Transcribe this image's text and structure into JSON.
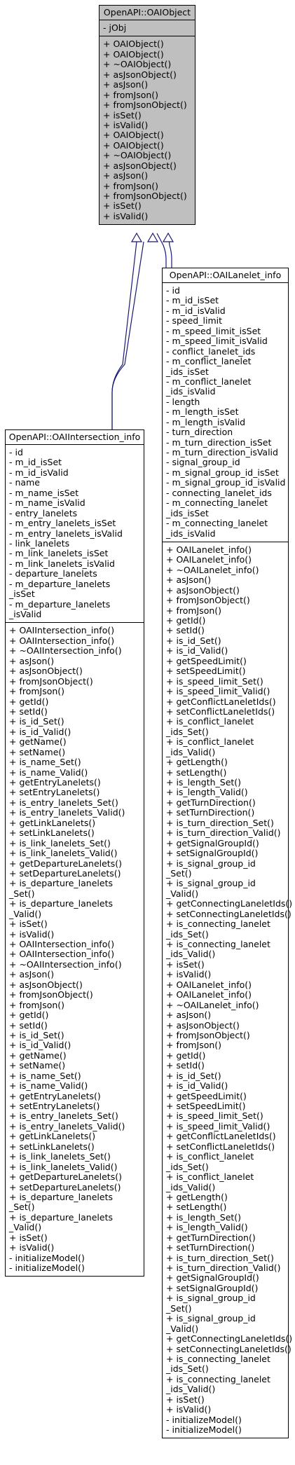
{
  "diagram": {
    "base_class": {
      "title": "OpenAPI::OAIObject",
      "attributes": [
        "- jObj"
      ],
      "methods": [
        "+ OAIObject()",
        "+ OAIObject()",
        "+ ~OAIObject()",
        "+ asJsonObject()",
        "+ asJson()",
        "+ fromJson()",
        "+ fromJsonObject()",
        "+ isSet()",
        "+ isValid()",
        "+ OAIObject()",
        "+ OAIObject()",
        "+ ~OAIObject()",
        "+ asJsonObject()",
        "+ asJson()",
        "+ fromJson()",
        "+ fromJsonObject()",
        "+ isSet()",
        "+ isValid()"
      ]
    },
    "intersection_class": {
      "title": "OpenAPI::OAIIntersection_info",
      "attributes": [
        "- id",
        "- m_id_isSet",
        "- m_id_isValid",
        "- name",
        "- m_name_isSet",
        "- m_name_isValid",
        "- entry_lanelets",
        "- m_entry_lanelets_isSet",
        "- m_entry_lanelets_isValid",
        "- link_lanelets",
        "- m_link_lanelets_isSet",
        "- m_link_lanelets_isValid",
        "- departure_lanelets",
        "- m_departure_lanelets",
        "  _isSet",
        "- m_departure_lanelets",
        "  _isValid"
      ],
      "methods": [
        "+ OAIIntersection_info()",
        "+ OAIIntersection_info()",
        "+ ~OAIIntersection_info()",
        "+ asJson()",
        "+ asJsonObject()",
        "+ fromJsonObject()",
        "+ fromJson()",
        "+ getId()",
        "+ setId()",
        "+ is_id_Set()",
        "+ is_id_Valid()",
        "+ getName()",
        "+ setName()",
        "+ is_name_Set()",
        "+ is_name_Valid()",
        "+ getEntryLanelets()",
        "+ setEntryLanelets()",
        "+ is_entry_lanelets_Set()",
        "+ is_entry_lanelets_Valid()",
        "+ getLinkLanelets()",
        "+ setLinkLanelets()",
        "+ is_link_lanelets_Set()",
        "+ is_link_lanelets_Valid()",
        "+ getDepartureLanelets()",
        "+ setDepartureLanelets()",
        "+ is_departure_lanelets",
        "  _Set()",
        "+ is_departure_lanelets",
        "  _Valid()",
        "+ isSet()",
        "+ isValid()",
        "+ OAIIntersection_info()",
        "+ OAIIntersection_info()",
        "+ ~OAIIntersection_info()",
        "+ asJson()",
        "+ asJsonObject()",
        "+ fromJsonObject()",
        "+ fromJson()",
        "+ getId()",
        "+ setId()",
        "+ is_id_Set()",
        "+ is_id_Valid()",
        "+ getName()",
        "+ setName()",
        "+ is_name_Set()",
        "+ is_name_Valid()",
        "+ getEntryLanelets()",
        "+ setEntryLanelets()",
        "+ is_entry_lanelets_Set()",
        "+ is_entry_lanelets_Valid()",
        "+ getLinkLanelets()",
        "+ setLinkLanelets()",
        "+ is_link_lanelets_Set()",
        "+ is_link_lanelets_Valid()",
        "+ getDepartureLanelets()",
        "+ setDepartureLanelets()",
        "+ is_departure_lanelets",
        "  _Set()",
        "+ is_departure_lanelets",
        "  _Valid()",
        "+ isSet()",
        "+ isValid()",
        "- initializeModel()",
        "- initializeModel()"
      ]
    },
    "lanelet_class": {
      "title": "OpenAPI::OAILanelet_info",
      "attributes": [
        "- id",
        "- m_id_isSet",
        "- m_id_isValid",
        "- speed_limit",
        "- m_speed_limit_isSet",
        "- m_speed_limit_isValid",
        "- conflict_lanelet_ids",
        "- m_conflict_lanelet",
        "  _ids_isSet",
        "- m_conflict_lanelet",
        "  _ids_isValid",
        "- length",
        "- m_length_isSet",
        "- m_length_isValid",
        "- turn_direction",
        "- m_turn_direction_isSet",
        "- m_turn_direction_isValid",
        "- signal_group_id",
        "- m_signal_group_id_isSet",
        "- m_signal_group_id_isValid",
        "- connecting_lanelet_ids",
        "- m_connecting_lanelet",
        "  _ids_isSet",
        "- m_connecting_lanelet",
        "  _ids_isValid"
      ],
      "methods": [
        "+ OAILanelet_info()",
        "+ OAILanelet_info()",
        "+ ~OAILanelet_info()",
        "+ asJson()",
        "+ asJsonObject()",
        "+ fromJsonObject()",
        "+ fromJson()",
        "+ getId()",
        "+ setId()",
        "+ is_id_Set()",
        "+ is_id_Valid()",
        "+ getSpeedLimit()",
        "+ setSpeedLimit()",
        "+ is_speed_limit_Set()",
        "+ is_speed_limit_Valid()",
        "+ getConflictLaneletIds()",
        "+ setConflictLaneletIds()",
        "+ is_conflict_lanelet",
        "  _ids_Set()",
        "+ is_conflict_lanelet",
        "  _ids_Valid()",
        "+ getLength()",
        "+ setLength()",
        "+ is_length_Set()",
        "+ is_length_Valid()",
        "+ getTurnDirection()",
        "+ setTurnDirection()",
        "+ is_turn_direction_Set()",
        "+ is_turn_direction_Valid()",
        "+ getSignalGroupId()",
        "+ setSignalGroupId()",
        "+ is_signal_group_id",
        "  _Set()",
        "+ is_signal_group_id",
        "  _Valid()",
        "+ getConnectingLaneletIds()",
        "+ setConnectingLaneletIds()",
        "+ is_connecting_lanelet",
        "  _ids_Set()",
        "+ is_connecting_lanelet",
        "  _ids_Valid()",
        "+ isSet()",
        "+ isValid()",
        "+ OAILanelet_info()",
        "+ OAILanelet_info()",
        "+ ~OAILanelet_info()",
        "+ asJson()",
        "+ asJsonObject()",
        "+ fromJsonObject()",
        "+ fromJson()",
        "+ getId()",
        "+ setId()",
        "+ is_id_Set()",
        "+ is_id_Valid()",
        "+ getSpeedLimit()",
        "+ setSpeedLimit()",
        "+ is_speed_limit_Set()",
        "+ is_speed_limit_Valid()",
        "+ getConflictLaneletIds()",
        "+ setConflictLaneletIds()",
        "+ is_conflict_lanelet",
        "  _ids_Set()",
        "+ is_conflict_lanelet",
        "  _ids_Valid()",
        "+ getLength()",
        "+ setLength()",
        "+ is_length_Set()",
        "+ is_length_Valid()",
        "+ getTurnDirection()",
        "+ setTurnDirection()",
        "+ is_turn_direction_Set()",
        "+ is_turn_direction_Valid()",
        "+ getSignalGroupId()",
        "+ setSignalGroupId()",
        "+ is_signal_group_id",
        "  _Set()",
        "+ is_signal_group_id",
        "  _Valid()",
        "+ getConnectingLaneletIds()",
        "+ setConnectingLaneletIds()",
        "+ is_connecting_lanelet",
        "  _ids_Set()",
        "+ is_connecting_lanelet",
        "  _ids_Valid()",
        "+ isSet()",
        "+ isValid()",
        "- initializeModel()",
        "- initializeModel()"
      ]
    },
    "colors": {
      "edge": "#191970",
      "base_fill": "#bfbfbf",
      "box_fill": "#ffffff",
      "border": "#000000"
    }
  }
}
